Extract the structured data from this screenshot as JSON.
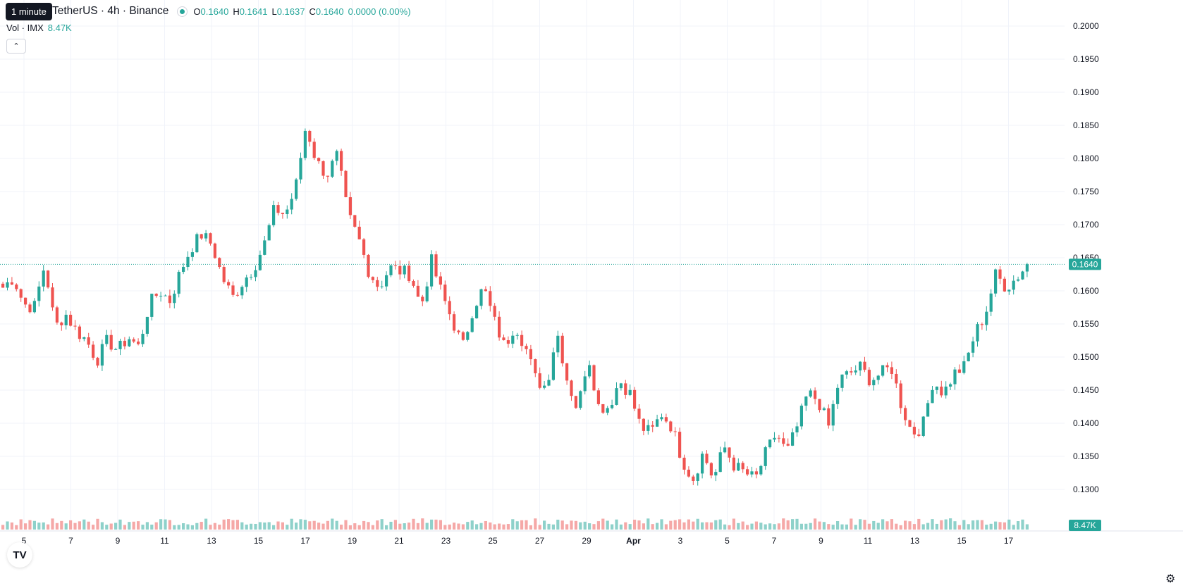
{
  "header": {
    "title": "TetherUS · 4h · Binance",
    "tooltip": "1 minute",
    "ohlc": {
      "o_label": "O",
      "o_value": "0.1640",
      "h_label": "H",
      "h_value": "0.1641",
      "l_label": "L",
      "l_value": "0.1637",
      "c_label": "C",
      "c_value": "0.1640",
      "change": "0.0000 (0.00%)"
    },
    "volume_label": "Vol · IMX",
    "volume_value": "8.47K"
  },
  "icons": {
    "collapse": "chevron-up-icon",
    "logo": "tradingview-logo-icon",
    "settings": "gear-icon"
  },
  "colors": {
    "up": "#26a69a",
    "down": "#ef5350",
    "up_volume": "#8ed1ca",
    "down_volume": "#f5a8a7",
    "grid": "#f0f3fa",
    "text": "#131722"
  },
  "chart_data": {
    "type": "candlestick",
    "timeframe": "4h",
    "ylim": [
      0.125,
      0.2
    ],
    "y_ticks": [
      "0.2000",
      "0.1950",
      "0.1900",
      "0.1850",
      "0.1800",
      "0.1750",
      "0.1700",
      "0.1650",
      "0.1600",
      "0.1550",
      "0.1500",
      "0.1450",
      "0.1400",
      "0.1350",
      "0.1300"
    ],
    "x_ticks": [
      "5",
      "7",
      "9",
      "11",
      "13",
      "15",
      "17",
      "19",
      "21",
      "23",
      "25",
      "27",
      "29",
      "Apr",
      "3",
      "5",
      "7",
      "9",
      "11",
      "13",
      "15",
      "17"
    ],
    "last_price": "0.1640",
    "last_volume": "8.47K",
    "close_path": [
      0.1605,
      0.162,
      0.158,
      0.1575,
      0.164,
      0.1545,
      0.1565,
      0.154,
      0.1525,
      0.1495,
      0.1525,
      0.151,
      0.153,
      0.1515,
      0.158,
      0.16,
      0.1585,
      0.163,
      0.1665,
      0.1685,
      0.167,
      0.162,
      0.159,
      0.1615,
      0.1635,
      0.167,
      0.1725,
      0.1715,
      0.1755,
      0.185,
      0.1795,
      0.1775,
      0.1805,
      0.1715,
      0.168,
      0.163,
      0.1605,
      0.1635,
      0.163,
      0.1625,
      0.1575,
      0.1645,
      0.1595,
      0.1555,
      0.1515,
      0.1575,
      0.1605,
      0.1555,
      0.1515,
      0.155,
      0.1515,
      0.1465,
      0.1455,
      0.154,
      0.1465,
      0.142,
      0.1505,
      0.1425,
      0.1425,
      0.1465,
      0.1445,
      0.1395,
      0.1385,
      0.1415,
      0.1395,
      0.1345,
      0.1315,
      0.1355,
      0.1315,
      0.1365,
      0.1335,
      0.1325,
      0.1315,
      0.1355,
      0.1385,
      0.1355,
      0.1395,
      0.1445,
      0.1435,
      0.1395,
      0.1465,
      0.1475,
      0.1485,
      0.1465,
      0.1475,
      0.1485,
      0.1425,
      0.1385,
      0.1395,
      0.1465,
      0.1445,
      0.1475,
      0.1485,
      0.1535,
      0.1565,
      0.1625,
      0.1605,
      0.162,
      0.164
    ]
  }
}
